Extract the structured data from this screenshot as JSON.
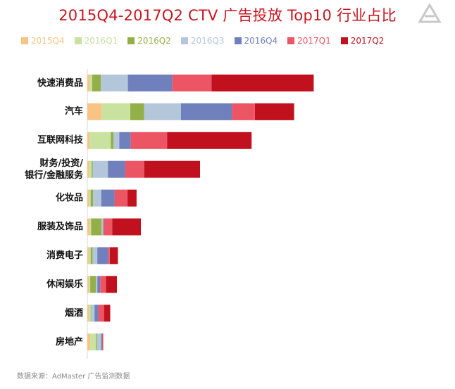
{
  "title": "2015Q4-2017Q2 CTV 广告投放 Top10 行业占比",
  "source": "数据来源：AdMaster 广告监测数据",
  "logo_icon": "admaster-logo-icon",
  "colors": {
    "title": "#c8141e",
    "series": [
      "#f9c384",
      "#c9e2a0",
      "#93b048",
      "#b3c6da",
      "#6f80bc",
      "#ec5564",
      "#c1111f"
    ]
  },
  "chart_data": {
    "type": "bar",
    "orientation": "horizontal",
    "stacked": true,
    "grid": false,
    "legend_position": "top",
    "categories": [
      "快速消费品",
      "汽车",
      "互联网科技",
      "财务/投资/银行/金融服务",
      "化妆品",
      "服装及饰品",
      "消费电子",
      "休闲娱乐",
      "烟酒",
      "房地产"
    ],
    "category_lines": [
      [
        "快速消费品"
      ],
      [
        "汽车"
      ],
      [
        "互联网科技"
      ],
      [
        "财务/投资/",
        "银行/金融服务"
      ],
      [
        "化妆品"
      ],
      [
        "服装及饰品"
      ],
      [
        "消费电子"
      ],
      [
        "休闲娱乐"
      ],
      [
        "烟酒"
      ],
      [
        "房地产"
      ]
    ],
    "series": [
      {
        "name": "2015Q4",
        "values": [
          0.5,
          3.0,
          0.5,
          0.3,
          0.3,
          0.5,
          0.3,
          0.3,
          0.3,
          0.6
        ]
      },
      {
        "name": "2016Q1",
        "values": [
          0.5,
          6.0,
          4.4,
          0.6,
          0.4,
          0.3,
          0.4,
          0.3,
          0.4,
          1.2
        ]
      },
      {
        "name": "2016Q2",
        "values": [
          1.8,
          2.9,
          0.6,
          0.2,
          0.5,
          2.2,
          0.4,
          1.2,
          0.1,
          0.2
        ]
      },
      {
        "name": "2016Q3",
        "values": [
          5.7,
          7.7,
          1.2,
          3.2,
          1.7,
          0.3,
          1.0,
          0.3,
          0.7,
          0.9
        ]
      },
      {
        "name": "2016Q4",
        "values": [
          9.3,
          10.7,
          2.4,
          3.6,
          2.8,
          0.1,
          2.3,
          0.6,
          0.8,
          0.2
        ]
      },
      {
        "name": "2017Q1",
        "values": [
          8.2,
          4.8,
          7.6,
          4.0,
          2.7,
          1.8,
          0.3,
          1.2,
          1.2,
          0.1
        ]
      },
      {
        "name": "2017Q2",
        "values": [
          21.4,
          8.2,
          17.7,
          11.7,
          1.9,
          6.0,
          1.7,
          2.3,
          1.3,
          0.1
        ]
      }
    ]
  }
}
